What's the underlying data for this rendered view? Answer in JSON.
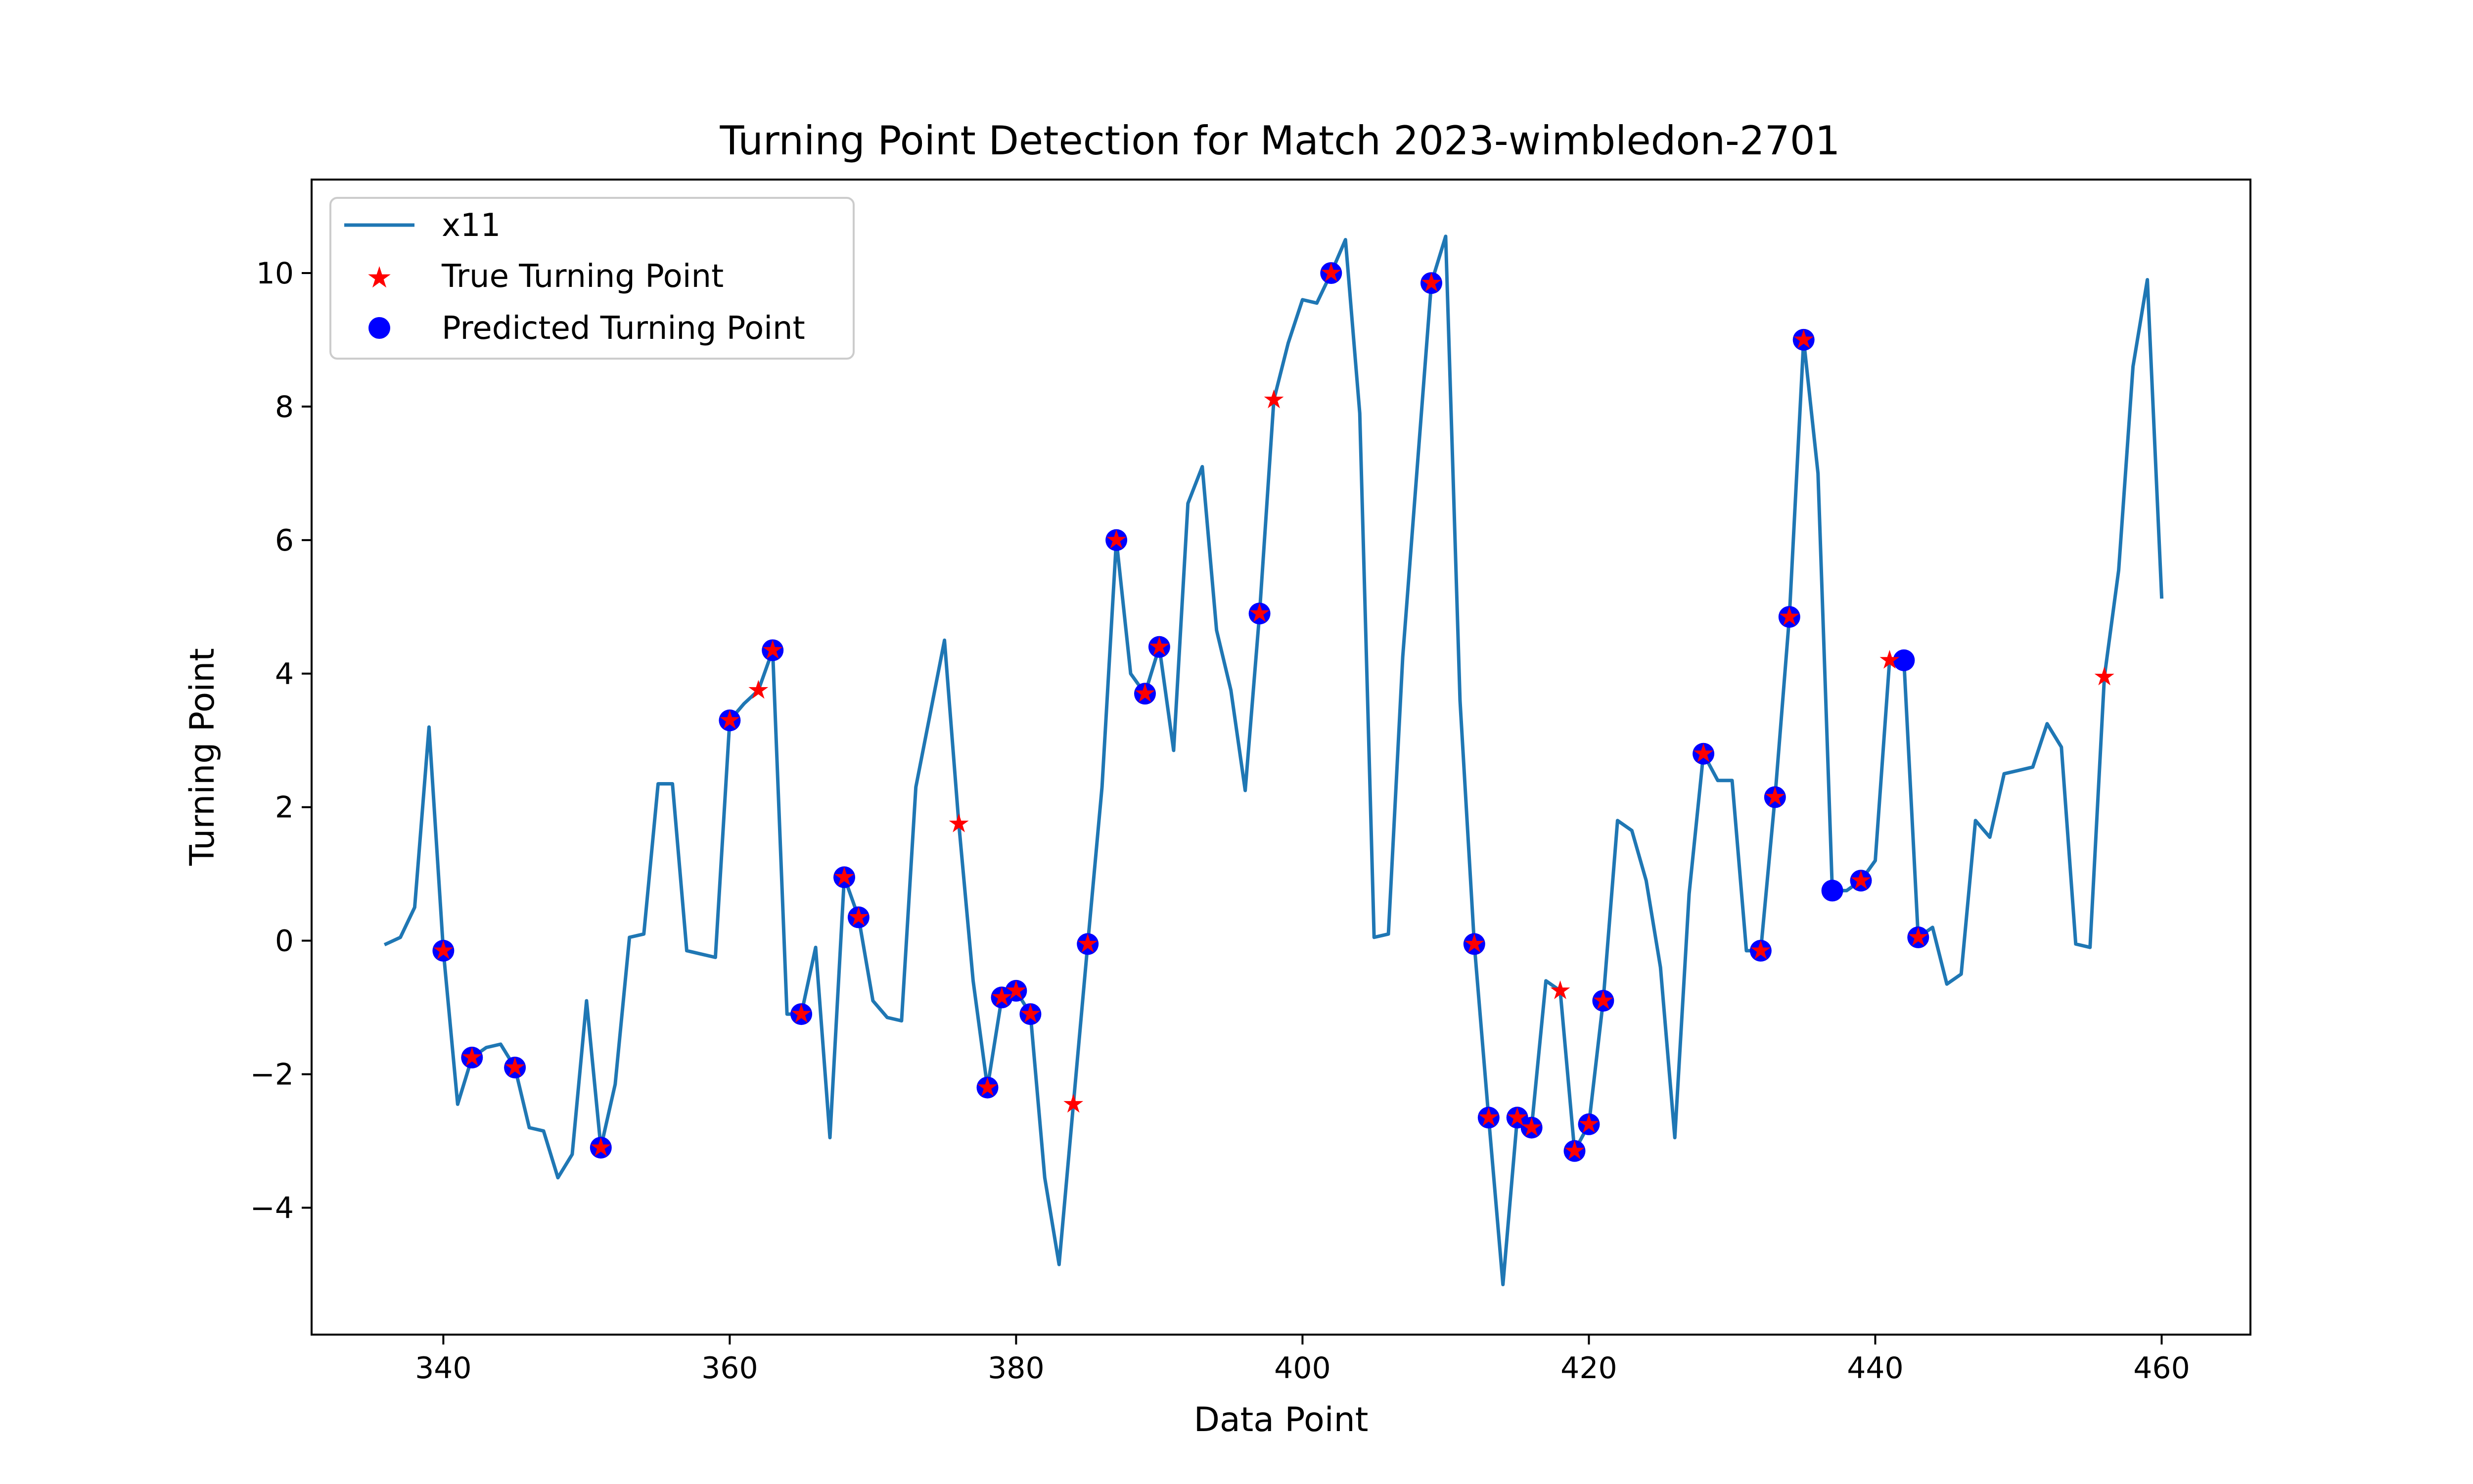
{
  "chart_data": {
    "type": "line",
    "title": "Turning Point Detection for Match 2023-wimbledon-2701",
    "xlabel": "Data Point",
    "ylabel": "Turning Point",
    "xlim": [
      330.8,
      466.2
    ],
    "ylim": [
      -5.9,
      11.4
    ],
    "xticks": [
      340,
      360,
      380,
      400,
      420,
      440,
      460
    ],
    "yticks": [
      -4,
      -2,
      0,
      2,
      4,
      6,
      8,
      10
    ],
    "grid": false,
    "legend_position": "top-left",
    "series": [
      {
        "name": "x11",
        "kind": "line",
        "color": "#1f77b4",
        "x": [
          336,
          337,
          338,
          339,
          340,
          341,
          342,
          343,
          344,
          345,
          346,
          347,
          348,
          349,
          350,
          351,
          352,
          353,
          354,
          355,
          356,
          357,
          358,
          359,
          360,
          361,
          362,
          363,
          364,
          365,
          366,
          367,
          368,
          369,
          370,
          371,
          372,
          373,
          374,
          375,
          376,
          377,
          378,
          379,
          380,
          381,
          382,
          383,
          384,
          385,
          386,
          387,
          388,
          389,
          390,
          391,
          392,
          393,
          394,
          395,
          396,
          397,
          398,
          399,
          400,
          401,
          402,
          403,
          404,
          405,
          406,
          407,
          408,
          409,
          410,
          411,
          412,
          413,
          414,
          415,
          416,
          417,
          418,
          419,
          420,
          421,
          422,
          423,
          424,
          425,
          426,
          427,
          428,
          429,
          430,
          431,
          432,
          433,
          434,
          435,
          436,
          437,
          438,
          439,
          440,
          441,
          442,
          443,
          444,
          445,
          446,
          447,
          448,
          449,
          450,
          451,
          452,
          453,
          454,
          455,
          456,
          457,
          458,
          459,
          460
        ],
        "y": [
          -0.05,
          0.05,
          0.5,
          3.2,
          -0.15,
          -2.45,
          -1.75,
          -1.6,
          -1.55,
          -1.9,
          -2.8,
          -2.85,
          -3.55,
          -3.2,
          -0.9,
          -3.1,
          -2.15,
          0.05,
          0.1,
          2.35,
          2.35,
          -0.15,
          -0.2,
          -0.25,
          3.3,
          3.55,
          3.75,
          4.35,
          -1.1,
          -1.1,
          -0.1,
          -2.95,
          0.95,
          0.35,
          -0.9,
          -1.15,
          -1.2,
          2.3,
          3.4,
          4.5,
          1.75,
          -0.6,
          -2.2,
          -0.85,
          -0.75,
          -1.1,
          -3.55,
          -4.85,
          -2.45,
          -0.05,
          2.3,
          6.0,
          4.0,
          3.7,
          4.4,
          2.85,
          6.55,
          7.1,
          4.65,
          3.75,
          2.25,
          4.9,
          8.1,
          8.95,
          9.6,
          9.55,
          10.0,
          10.5,
          7.9,
          0.05,
          0.1,
          4.25,
          7.05,
          9.85,
          10.55,
          3.6,
          -0.05,
          -2.65,
          -5.15,
          -2.65,
          -2.8,
          -0.6,
          -0.75,
          -3.15,
          -2.75,
          -0.9,
          1.8,
          1.65,
          0.9,
          -0.4,
          -2.95,
          0.7,
          2.8,
          2.4,
          2.4,
          -0.15,
          -0.15,
          2.15,
          4.85,
          9.0,
          7.0,
          0.75,
          0.75,
          0.9,
          1.2,
          4.2,
          4.2,
          0.05,
          0.2,
          -0.65,
          -0.5,
          1.8,
          1.55,
          2.5,
          2.55,
          2.6,
          3.25,
          2.9,
          -0.05,
          -0.1,
          3.95,
          5.55,
          8.6,
          9.9,
          5.15
        ]
      },
      {
        "name": "True Turning Point",
        "kind": "scatter",
        "marker": "star",
        "color": "#ff0000",
        "x": [
          340,
          342,
          345,
          351,
          360,
          362,
          363,
          365,
          368,
          369,
          376,
          378,
          379,
          380,
          381,
          384,
          385,
          387,
          389,
          390,
          397,
          398,
          402,
          409,
          412,
          413,
          415,
          416,
          418,
          419,
          420,
          421,
          428,
          432,
          433,
          434,
          435,
          439,
          441,
          443,
          456
        ],
        "y": [
          -0.15,
          -1.75,
          -1.9,
          -3.1,
          3.3,
          3.75,
          4.35,
          -1.1,
          0.95,
          0.35,
          1.75,
          -2.2,
          -0.85,
          -0.75,
          -1.1,
          -2.45,
          -0.05,
          6.0,
          3.7,
          4.4,
          4.9,
          8.1,
          10.0,
          9.85,
          -0.05,
          -2.65,
          -2.65,
          -2.8,
          -0.75,
          -3.15,
          -2.75,
          -0.9,
          2.8,
          -0.15,
          2.15,
          4.85,
          9.0,
          0.9,
          4.2,
          0.05,
          3.95
        ]
      },
      {
        "name": "Predicted Turning Point",
        "kind": "scatter",
        "marker": "circle",
        "color": "#0000ff",
        "x": [
          340,
          342,
          345,
          351,
          360,
          363,
          365,
          368,
          369,
          378,
          379,
          380,
          381,
          385,
          387,
          389,
          390,
          397,
          402,
          409,
          412,
          413,
          415,
          416,
          419,
          420,
          421,
          428,
          432,
          433,
          434,
          435,
          437,
          439,
          442,
          443
        ],
        "y": [
          -0.15,
          -1.75,
          -1.9,
          -3.1,
          3.3,
          4.35,
          -1.1,
          0.95,
          0.35,
          -2.2,
          -0.85,
          -0.75,
          -1.1,
          -0.05,
          6.0,
          3.7,
          4.4,
          4.9,
          10.0,
          9.85,
          -0.05,
          -2.65,
          -2.65,
          -2.8,
          -3.15,
          -2.75,
          -0.9,
          2.8,
          -0.15,
          2.15,
          4.85,
          9.0,
          0.75,
          0.9,
          4.2,
          0.05
        ]
      }
    ]
  }
}
